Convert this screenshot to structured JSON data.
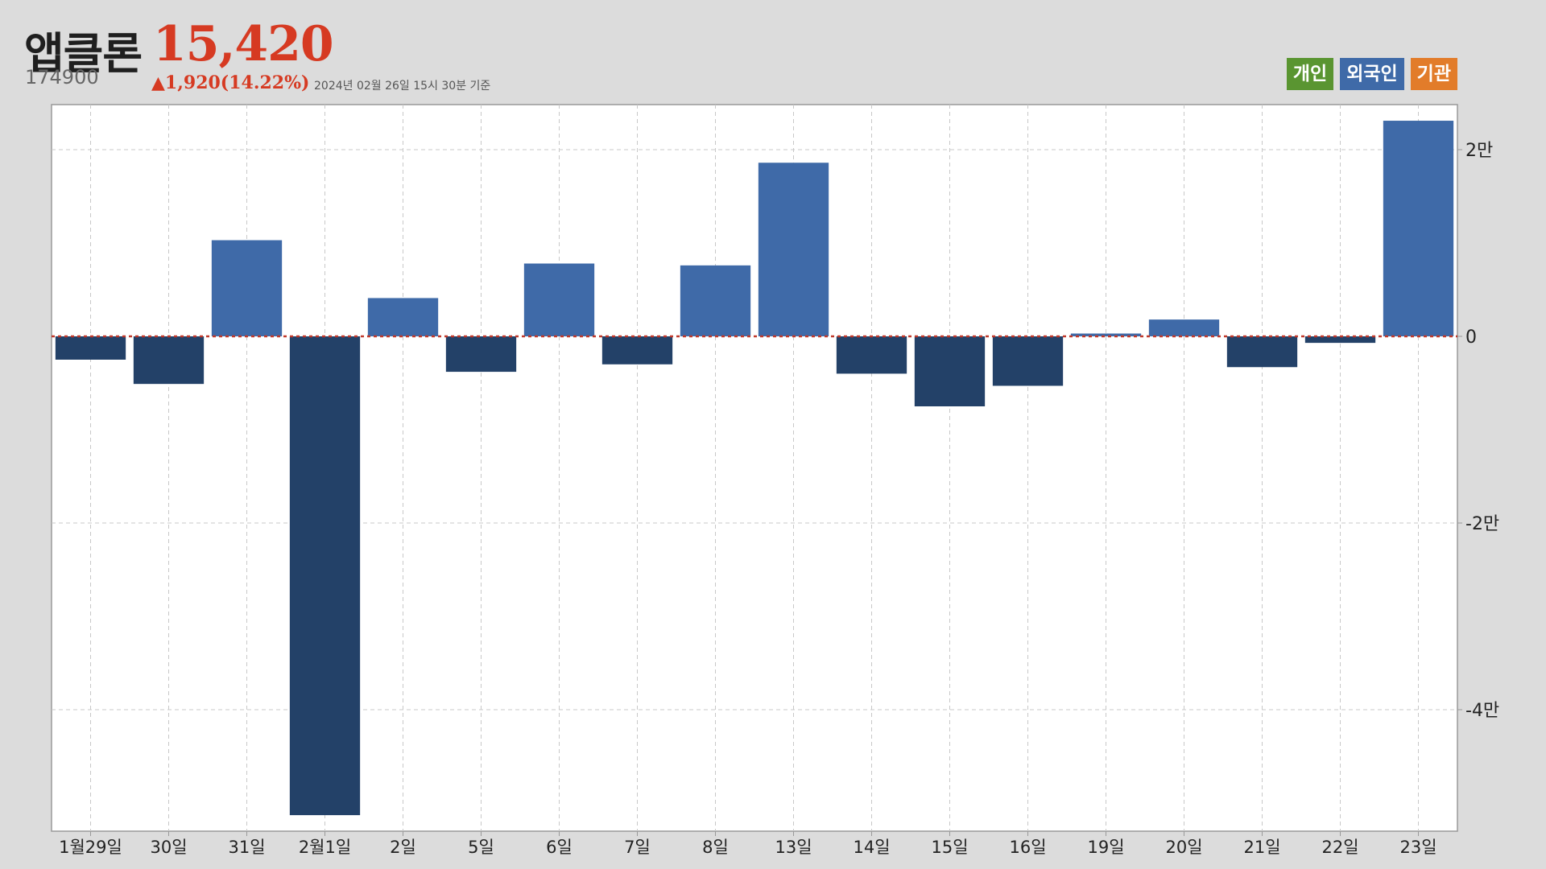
{
  "header": {
    "name": "앱클론",
    "price": "15,420",
    "code": "174900",
    "change": "▲1,920(14.22%)",
    "as_of": "2024년 02월 26일 15시 30분 기준"
  },
  "legend": {
    "items": [
      {
        "label": "개인",
        "color": "#5a9531"
      },
      {
        "label": "외국인",
        "color": "#3f6aa8"
      },
      {
        "label": "기관",
        "color": "#e27c2a"
      }
    ]
  },
  "chart_data": {
    "type": "bar",
    "categories": [
      "1월29일",
      "30일",
      "31일",
      "2월1일",
      "2일",
      "5일",
      "6일",
      "7일",
      "8일",
      "13일",
      "14일",
      "15일",
      "16일",
      "19일",
      "20일",
      "21일",
      "22일",
      "23일"
    ],
    "series": [
      {
        "name": "외국인",
        "values": [
          -2500,
          -5100,
          10300,
          -51300,
          4100,
          -3800,
          7800,
          -3000,
          7600,
          18600,
          -4000,
          -7500,
          -5300,
          300,
          1800,
          -3300,
          -700,
          23100
        ]
      }
    ],
    "positive_color": "#3f6aa8",
    "negative_color": "#234168",
    "ylim": [
      -53000,
      25000
    ],
    "y_ticks": [
      20000,
      0,
      -20000,
      -40000
    ],
    "y_tick_labels": [
      "2만",
      "0",
      "-2만",
      "-4만"
    ],
    "zero_line_color": "#c0392b",
    "grid": true
  }
}
